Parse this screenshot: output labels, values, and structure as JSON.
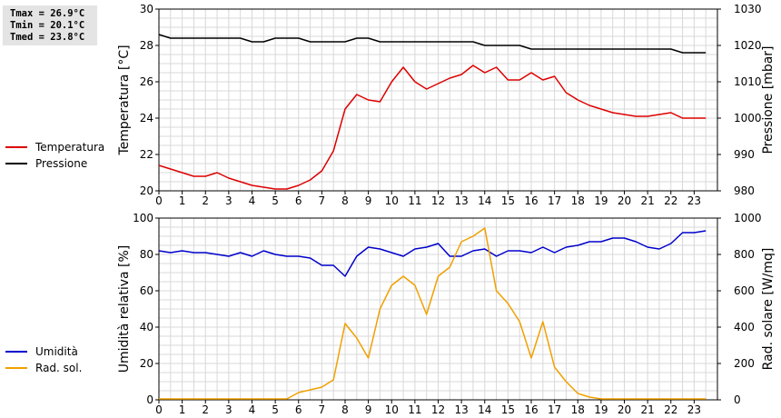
{
  "stats": {
    "tmax": "Tmax = 26.9°C",
    "tmin": "Tmin = 20.1°C",
    "tmed": "Tmed = 23.8°C"
  },
  "chart_data": [
    {
      "type": "line",
      "title": "",
      "xlabel": "",
      "ylabel": "Temperatura [°C]",
      "y2label": "Pressione [mbar]",
      "xlim": [
        0,
        24
      ],
      "ylim": [
        20,
        30
      ],
      "y2lim": [
        980,
        1030
      ],
      "x_ticks": [
        "0",
        "1",
        "2",
        "3",
        "4",
        "5",
        "6",
        "7",
        "8",
        "9",
        "10",
        "11",
        "12",
        "13",
        "14",
        "15",
        "16",
        "17",
        "18",
        "19",
        "20",
        "21",
        "22",
        "23"
      ],
      "y_ticks": [
        "20",
        "22",
        "24",
        "26",
        "28",
        "30"
      ],
      "y2_ticks": [
        "980",
        "990",
        "1000",
        "1010",
        "1020",
        "1030"
      ],
      "grid": true,
      "legend_position": "left",
      "series": [
        {
          "name": "Temperatura",
          "axis": "left",
          "color": "#dd0000",
          "x": [
            0,
            0.5,
            1,
            1.5,
            2,
            2.5,
            3,
            3.5,
            4,
            4.5,
            5,
            5.5,
            6,
            6.5,
            7,
            7.5,
            8,
            8.5,
            9,
            9.5,
            10,
            10.5,
            11,
            11.5,
            12,
            12.5,
            13,
            13.5,
            14,
            14.5,
            15,
            15.5,
            16,
            16.5,
            17,
            17.5,
            18,
            18.5,
            19,
            19.5,
            20,
            20.5,
            21,
            21.5,
            22,
            22.5,
            23,
            23.5
          ],
          "values": [
            21.4,
            21.2,
            21.0,
            20.8,
            20.8,
            21.0,
            20.7,
            20.5,
            20.3,
            20.2,
            20.1,
            20.1,
            20.3,
            20.6,
            21.1,
            22.2,
            24.5,
            25.3,
            25.0,
            24.9,
            26.0,
            26.8,
            26.0,
            25.6,
            25.9,
            26.2,
            26.4,
            26.9,
            26.5,
            26.8,
            26.1,
            26.1,
            26.5,
            26.1,
            26.3,
            25.4,
            25.0,
            24.7,
            24.5,
            24.3,
            24.2,
            24.1,
            24.1,
            24.2,
            24.3,
            24.0,
            24.0,
            24.0
          ]
        },
        {
          "name": "Pressione",
          "axis": "right",
          "color": "#000000",
          "x": [
            0,
            0.5,
            1,
            1.5,
            2,
            2.5,
            3,
            3.5,
            4,
            4.5,
            5,
            5.5,
            6,
            6.5,
            7,
            7.5,
            8,
            8.5,
            9,
            9.5,
            10,
            10.5,
            11,
            11.5,
            12,
            12.5,
            13,
            13.5,
            14,
            14.5,
            15,
            15.5,
            16,
            16.5,
            17,
            17.5,
            18,
            18.5,
            19,
            19.5,
            20,
            20.5,
            21,
            21.5,
            22,
            22.5,
            23,
            23.5
          ],
          "values": [
            1023,
            1022,
            1022,
            1022,
            1022,
            1022,
            1022,
            1022,
            1021,
            1021,
            1022,
            1022,
            1022,
            1021,
            1021,
            1021,
            1021,
            1022,
            1022,
            1021,
            1021,
            1021,
            1021,
            1021,
            1021,
            1021,
            1021,
            1021,
            1020,
            1020,
            1020,
            1020,
            1019,
            1019,
            1019,
            1019,
            1019,
            1019,
            1019,
            1019,
            1019,
            1019,
            1019,
            1019,
            1019,
            1018,
            1018,
            1018
          ]
        }
      ]
    },
    {
      "type": "line",
      "title": "",
      "xlabel": "",
      "ylabel": "Umidità relativa [%]",
      "y2label": "Rad. solare [W/mq]",
      "xlim": [
        0,
        24
      ],
      "ylim": [
        0,
        100
      ],
      "y2lim": [
        0,
        1000
      ],
      "x_ticks": [
        "0",
        "1",
        "2",
        "3",
        "4",
        "5",
        "6",
        "7",
        "8",
        "9",
        "10",
        "11",
        "12",
        "13",
        "14",
        "15",
        "16",
        "17",
        "18",
        "19",
        "20",
        "21",
        "22",
        "23"
      ],
      "y_ticks": [
        "0",
        "20",
        "40",
        "60",
        "80",
        "100"
      ],
      "y2_ticks": [
        "0",
        "200",
        "400",
        "600",
        "800",
        "1000"
      ],
      "grid": true,
      "legend_position": "left",
      "series": [
        {
          "name": "Umidità",
          "axis": "left",
          "color": "#0000cc",
          "x": [
            0,
            0.5,
            1,
            1.5,
            2,
            2.5,
            3,
            3.5,
            4,
            4.5,
            5,
            5.5,
            6,
            6.5,
            7,
            7.5,
            8,
            8.5,
            9,
            9.5,
            10,
            10.5,
            11,
            11.5,
            12,
            12.5,
            13,
            13.5,
            14,
            14.5,
            15,
            15.5,
            16,
            16.5,
            17,
            17.5,
            18,
            18.5,
            19,
            19.5,
            20,
            20.5,
            21,
            21.5,
            22,
            22.5,
            23,
            23.5
          ],
          "values": [
            82,
            81,
            82,
            81,
            81,
            80,
            79,
            81,
            79,
            82,
            80,
            79,
            79,
            78,
            74,
            74,
            68,
            79,
            84,
            83,
            81,
            79,
            83,
            84,
            86,
            79,
            79,
            82,
            83,
            79,
            82,
            82,
            81,
            84,
            81,
            84,
            85,
            87,
            87,
            89,
            89,
            87,
            84,
            83,
            86,
            92,
            92,
            93
          ]
        },
        {
          "name": "Rad. sol.",
          "axis": "right",
          "color": "#f0a000",
          "x": [
            0,
            0.5,
            1,
            1.5,
            2,
            2.5,
            3,
            3.5,
            4,
            4.5,
            5,
            5.5,
            6,
            6.5,
            7,
            7.5,
            8,
            8.5,
            9,
            9.5,
            10,
            10.5,
            11,
            11.5,
            12,
            12.5,
            13,
            13.5,
            14,
            14.5,
            15,
            15.5,
            16,
            16.5,
            17,
            17.5,
            18,
            18.5,
            19,
            19.5,
            20,
            20.5,
            21,
            21.5,
            22,
            22.5,
            23,
            23.5
          ],
          "values": [
            5,
            5,
            5,
            5,
            5,
            5,
            5,
            5,
            5,
            5,
            5,
            5,
            40,
            55,
            70,
            110,
            420,
            340,
            230,
            500,
            630,
            680,
            630,
            470,
            680,
            730,
            870,
            900,
            945,
            600,
            530,
            430,
            230,
            430,
            180,
            100,
            35,
            15,
            5,
            5,
            5,
            5,
            5,
            5,
            5,
            5,
            5,
            5
          ]
        }
      ]
    }
  ]
}
